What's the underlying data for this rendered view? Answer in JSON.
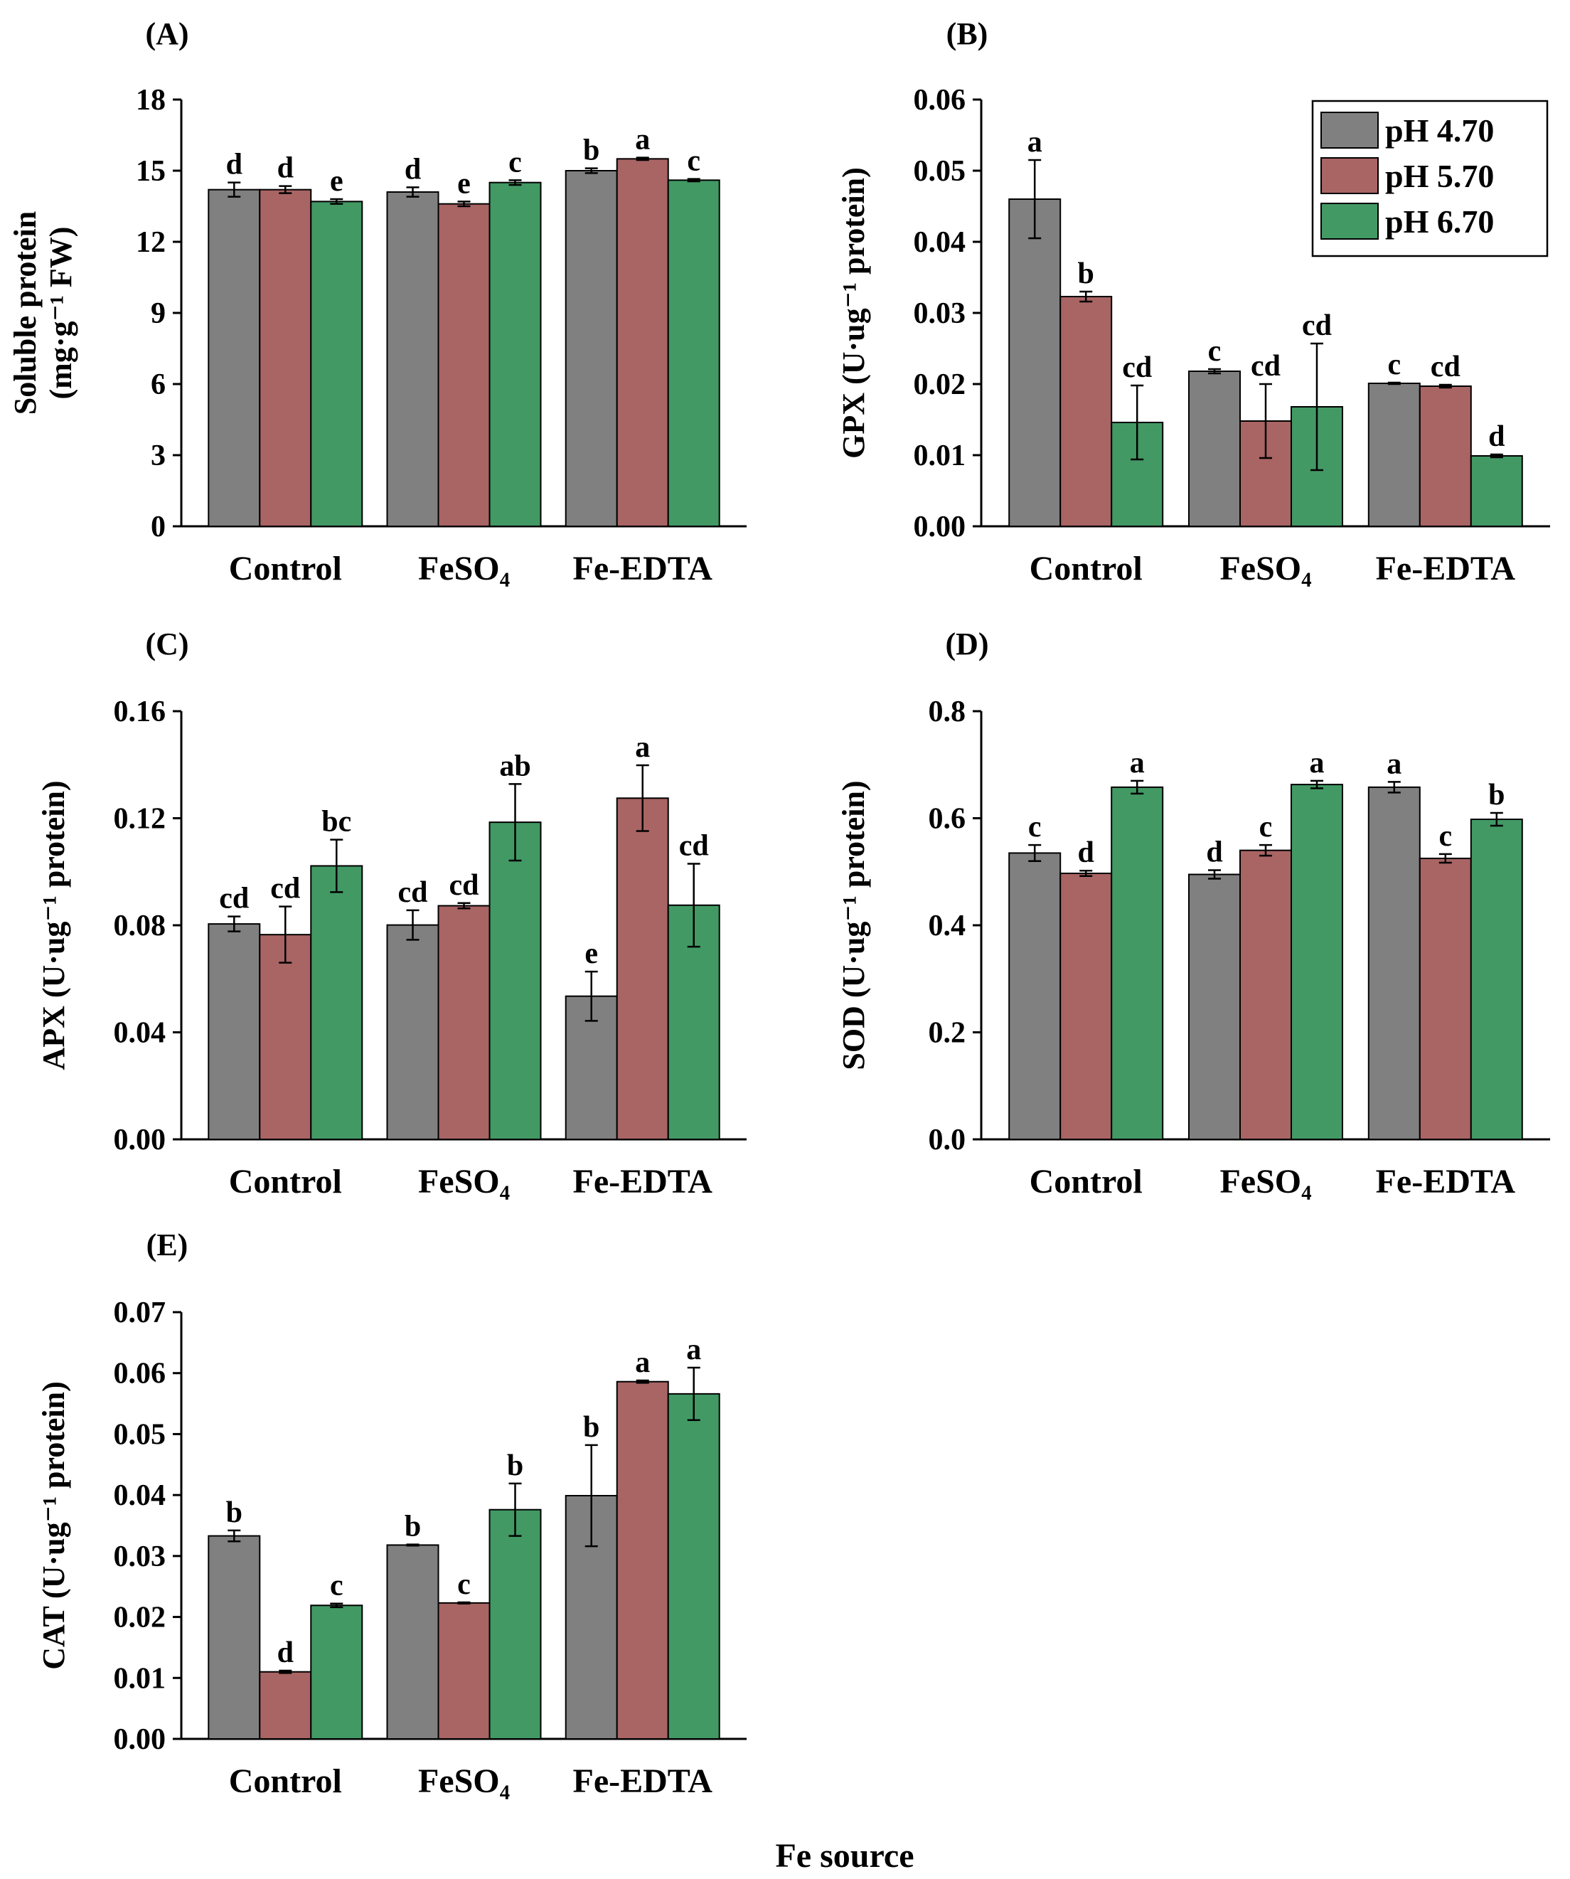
{
  "figure": {
    "xlabel": "Fe source",
    "categories": [
      "Control",
      "FeSO₄",
      "Fe-EDTA"
    ],
    "legend": {
      "entries": [
        "pH 4.70",
        "pH 5.70",
        "pH 6.70"
      ],
      "colors": [
        "#808080",
        "#a96464",
        "#429964"
      ],
      "placement": "top-right of panel B"
    }
  },
  "chart_data": [
    {
      "panel": "(A)",
      "type": "bar",
      "ylabel_line1": "Soluble protein",
      "ylabel_line2": "(mg·g⁻¹ FW)",
      "ylim": [
        0,
        18
      ],
      "yticks": [
        "0",
        "3",
        "6",
        "9",
        "12",
        "15",
        "18"
      ],
      "categories": [
        "Control",
        "FeSO₄",
        "Fe-EDTA"
      ],
      "series": [
        {
          "name": "pH 4.70",
          "values": [
            14.2,
            14.1,
            15.0
          ],
          "errors": [
            0.3,
            0.2,
            0.1
          ],
          "letters": [
            "d",
            "d",
            "b"
          ]
        },
        {
          "name": "pH 5.70",
          "values": [
            14.2,
            13.6,
            15.5
          ],
          "errors": [
            0.15,
            0.1,
            0.05
          ],
          "letters": [
            "d",
            "e",
            "a"
          ]
        },
        {
          "name": "pH 6.70",
          "values": [
            13.7,
            14.5,
            14.6
          ],
          "errors": [
            0.1,
            0.1,
            0.05
          ],
          "letters": [
            "e",
            "c",
            "c"
          ]
        }
      ]
    },
    {
      "panel": "(B)",
      "type": "bar",
      "ylabel_line1": "GPX (U·ug⁻¹ protein)",
      "ylim": [
        0,
        0.06
      ],
      "yticks": [
        "0.00",
        "0.01",
        "0.02",
        "0.03",
        "0.04",
        "0.05",
        "0.06"
      ],
      "categories": [
        "Control",
        "FeSO₄",
        "Fe-EDTA"
      ],
      "series": [
        {
          "name": "pH 4.70",
          "values": [
            0.046,
            0.0218,
            0.0201
          ],
          "errors": [
            0.0055,
            0.0003,
            0.0001
          ],
          "letters": [
            "a",
            "c",
            "c"
          ]
        },
        {
          "name": "pH 5.70",
          "values": [
            0.0323,
            0.0148,
            0.0197
          ],
          "errors": [
            0.0007,
            0.0052,
            0.0002
          ],
          "letters": [
            "b",
            "cd",
            "cd"
          ]
        },
        {
          "name": "pH 6.70",
          "values": [
            0.0146,
            0.0168,
            0.0099
          ],
          "errors": [
            0.0052,
            0.0089,
            0.0002
          ],
          "letters": [
            "cd",
            "cd",
            "d"
          ]
        }
      ]
    },
    {
      "panel": "(C)",
      "type": "bar",
      "ylabel_line1": "APX (U·ug⁻¹ protein)",
      "ylim": [
        0,
        0.16
      ],
      "yticks": [
        "0.00",
        "0.04",
        "0.08",
        "0.12",
        "0.16"
      ],
      "categories": [
        "Control",
        "FeSO₄",
        "Fe-EDTA"
      ],
      "series": [
        {
          "name": "pH 4.70",
          "values": [
            0.0805,
            0.0801,
            0.0535
          ],
          "errors": [
            0.0028,
            0.0055,
            0.0092
          ],
          "letters": [
            "cd",
            "cd",
            "e"
          ]
        },
        {
          "name": "pH 5.70",
          "values": [
            0.0765,
            0.0873,
            0.1275
          ],
          "errors": [
            0.0105,
            0.001,
            0.0123
          ],
          "letters": [
            "cd",
            "cd",
            "a"
          ]
        },
        {
          "name": "pH 6.70",
          "values": [
            0.1022,
            0.1185,
            0.0875
          ],
          "errors": [
            0.0098,
            0.0143,
            0.0155
          ],
          "letters": [
            "bc",
            "ab",
            "cd"
          ]
        }
      ]
    },
    {
      "panel": "(D)",
      "type": "bar",
      "ylabel_line1": "SOD (U·ug⁻¹ protein)",
      "ylim": [
        0,
        0.8
      ],
      "yticks": [
        "0.0",
        "0.2",
        "0.4",
        "0.6",
        "0.8"
      ],
      "categories": [
        "Control",
        "FeSO₄",
        "Fe-EDTA"
      ],
      "series": [
        {
          "name": "pH 4.70",
          "values": [
            0.535,
            0.495,
            0.658
          ],
          "errors": [
            0.015,
            0.008,
            0.01
          ],
          "letters": [
            "c",
            "d",
            "a"
          ]
        },
        {
          "name": "pH 5.70",
          "values": [
            0.497,
            0.54,
            0.525
          ],
          "errors": [
            0.005,
            0.01,
            0.008
          ],
          "letters": [
            "d",
            "c",
            "c"
          ]
        },
        {
          "name": "pH 6.70",
          "values": [
            0.658,
            0.663,
            0.598
          ],
          "errors": [
            0.012,
            0.007,
            0.012
          ],
          "letters": [
            "a",
            "a",
            "b"
          ]
        }
      ]
    },
    {
      "panel": "(E)",
      "type": "bar",
      "ylabel_line1": "CAT (U·ug⁻¹ protein)",
      "ylim": [
        0,
        0.07
      ],
      "yticks": [
        "0.00",
        "0.01",
        "0.02",
        "0.03",
        "0.04",
        "0.05",
        "0.06",
        "0.07"
      ],
      "categories": [
        "Control",
        "FeSO₄",
        "Fe-EDTA"
      ],
      "series": [
        {
          "name": "pH 4.70",
          "values": [
            0.0333,
            0.0318,
            0.0399
          ],
          "errors": [
            0.0009,
            0.0001,
            0.0083
          ],
          "letters": [
            "b",
            "b",
            "b"
          ]
        },
        {
          "name": "pH 5.70",
          "values": [
            0.011,
            0.0223,
            0.0586
          ],
          "errors": [
            0.0002,
            0.0001,
            0.0002
          ],
          "letters": [
            "d",
            "c",
            "a"
          ]
        },
        {
          "name": "pH 6.70",
          "values": [
            0.0219,
            0.0376,
            0.0566
          ],
          "errors": [
            0.0003,
            0.0043,
            0.0043
          ],
          "letters": [
            "c",
            "b",
            "a"
          ]
        }
      ]
    }
  ]
}
